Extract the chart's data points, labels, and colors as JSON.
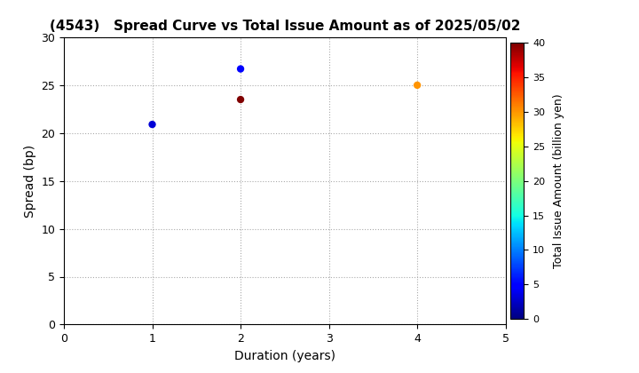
{
  "title": "(4543)   Spread Curve vs Total Issue Amount as of 2025/05/02",
  "xlabel": "Duration (years)",
  "ylabel": "Spread (bp)",
  "colorbar_label": "Total Issue Amount (billion yen)",
  "xlim": [
    0,
    5
  ],
  "ylim": [
    0,
    30
  ],
  "xticks": [
    0,
    1,
    2,
    3,
    4,
    5
  ],
  "yticks": [
    0,
    5,
    10,
    15,
    20,
    25,
    30
  ],
  "colorbar_min": 0,
  "colorbar_max": 40,
  "colorbar_ticks": [
    0,
    5,
    10,
    15,
    20,
    25,
    30,
    35,
    40
  ],
  "points": [
    {
      "duration": 1.0,
      "spread": 20.9,
      "amount": 3.0
    },
    {
      "duration": 2.0,
      "spread": 26.7,
      "amount": 5.0
    },
    {
      "duration": 2.0,
      "spread": 23.5,
      "amount": 40.0
    },
    {
      "duration": 4.0,
      "spread": 25.0,
      "amount": 30.0
    }
  ],
  "background_color": "#ffffff",
  "grid_color": "#aaaaaa",
  "marker_size": 6,
  "title_fontsize": 11,
  "axis_fontsize": 10,
  "colorbar_label_fontsize": 9
}
